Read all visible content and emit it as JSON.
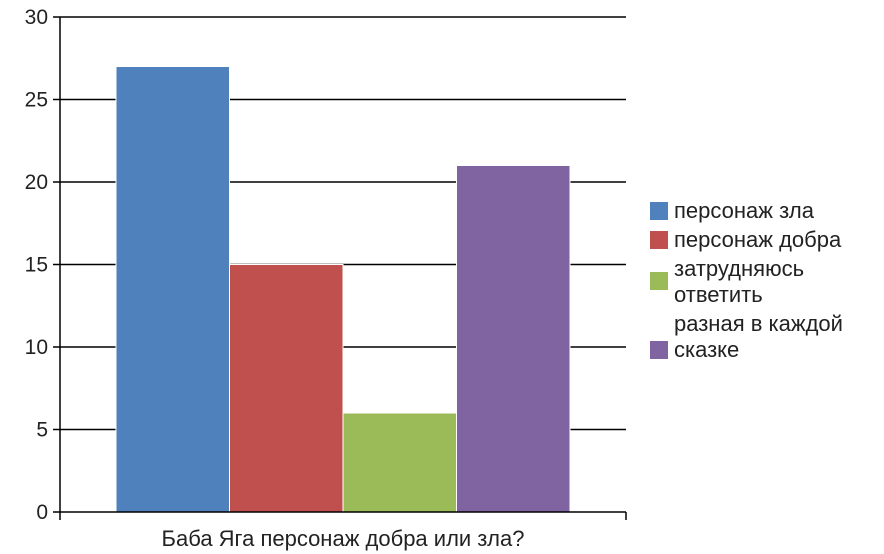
{
  "chart_data": {
    "type": "bar",
    "categories": [
      "Баба Яга персонаж добра или зла?"
    ],
    "series": [
      {
        "name": "персонаж зла",
        "values": [
          27
        ],
        "color": "#4f81bd"
      },
      {
        "name": "персонаж добра",
        "values": [
          15
        ],
        "color": "#c0504d"
      },
      {
        "name": "затрудняюсь ответить",
        "values": [
          6
        ],
        "color": "#9bbb59"
      },
      {
        "name": "разная в каждой сказке",
        "values": [
          21
        ],
        "color": "#8064a2"
      }
    ],
    "title": "",
    "xlabel": "",
    "ylabel": "",
    "ylim": [
      0,
      30
    ],
    "yticks": [
      "0",
      "5",
      "10",
      "15",
      "20",
      "25",
      "30"
    ],
    "grid": true,
    "legend": "right"
  }
}
